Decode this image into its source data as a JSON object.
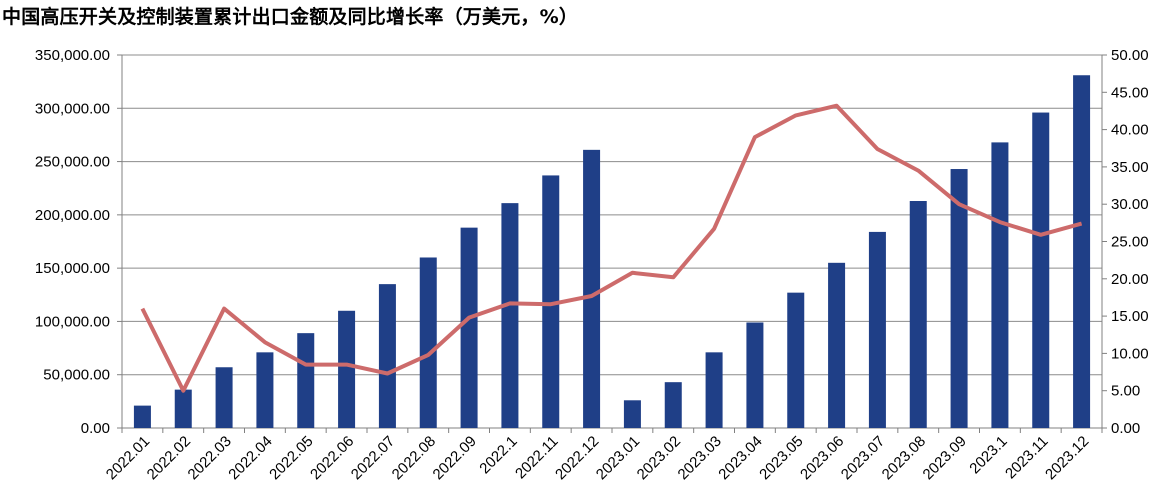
{
  "chart_data": {
    "type": "bar",
    "title": "中国高压开关及控制装置累计出口金额及同比增长率（万美元，%）",
    "categories": [
      "2022.01",
      "2022.02",
      "2022.03",
      "2022.04",
      "2022.05",
      "2022.06",
      "2022.07",
      "2022.08",
      "2022.09",
      "2022.1",
      "2022.11",
      "2022.12",
      "2023.01",
      "2023.02",
      "2023.03",
      "2023.04",
      "2023.05",
      "2023.06",
      "2023.07",
      "2023.08",
      "2023.09",
      "2023.1",
      "2023.11",
      "2023.12"
    ],
    "series": [
      {
        "type": "bar",
        "axis": "left",
        "color": "#1f3f87",
        "values": [
          21000,
          36000,
          57000,
          71000,
          89000,
          110000,
          135000,
          160000,
          188000,
          211000,
          237000,
          261000,
          26000,
          43000,
          71000,
          99000,
          127000,
          155000,
          184000,
          213000,
          243000,
          268000,
          296000,
          331000
        ]
      },
      {
        "type": "line",
        "axis": "right",
        "color": "#cd6b6b",
        "values": [
          16.0,
          5.0,
          16.0,
          11.5,
          8.5,
          8.5,
          7.3,
          9.8,
          14.8,
          16.7,
          16.6,
          17.7,
          20.8,
          20.2,
          26.7,
          39.0,
          41.9,
          43.2,
          37.4,
          34.5,
          30.0,
          27.6,
          25.9,
          27.4
        ]
      }
    ],
    "y_left": {
      "min": 0,
      "max": 350000,
      "step": 50000,
      "tick_labels": [
        "0.00",
        "50,000.00",
        "100,000.00",
        "150,000.00",
        "200,000.00",
        "250,000.00",
        "300,000.00",
        "350,000.00"
      ]
    },
    "y_right": {
      "min": 0,
      "max": 50,
      "step": 5,
      "tick_labels": [
        "0.00",
        "5.00",
        "10.00",
        "15.00",
        "20.00",
        "25.00",
        "30.00",
        "35.00",
        "40.00",
        "45.00",
        "50.00"
      ]
    },
    "grid": true,
    "legend": "none"
  }
}
